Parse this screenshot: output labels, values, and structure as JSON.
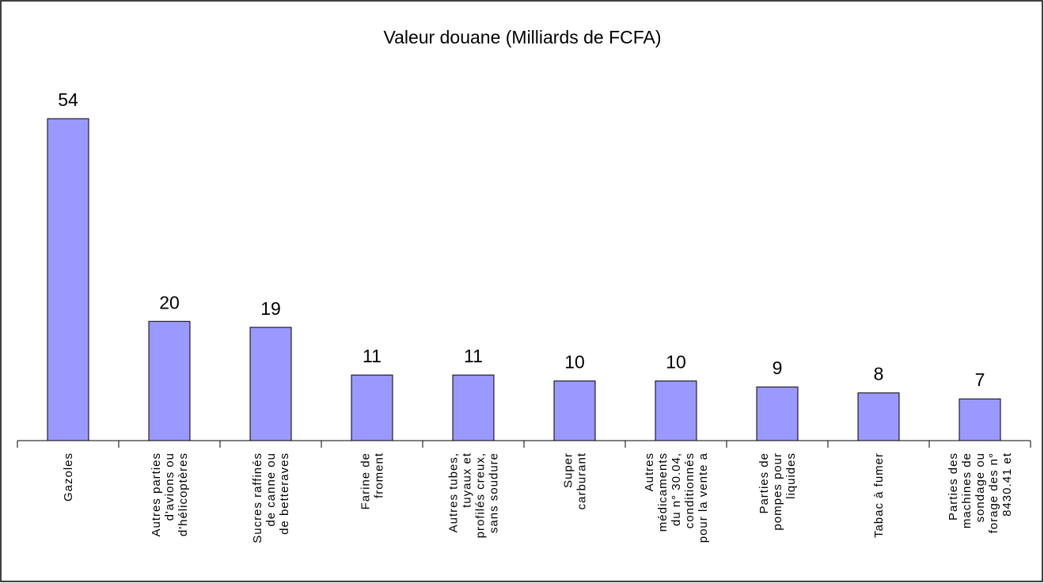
{
  "chart_data": {
    "type": "bar",
    "title": "Valeur douane (Milliards de FCFA)",
    "categories": [
      [
        "Gazoles"
      ],
      [
        "Autres parties",
        "d'avions ou",
        "d'hélicoptères"
      ],
      [
        "Sucres raffinés",
        "de canne ou",
        "de betteraves"
      ],
      [
        "Farine de",
        "froment"
      ],
      [
        "Autres tubes,",
        "tuyaux et",
        "profilés creux,",
        "sans soudure"
      ],
      [
        "Super",
        "carburant"
      ],
      [
        "Autres",
        "médicaments",
        "du n° 30.04,",
        "conditionnés",
        "pour la vente a"
      ],
      [
        "Parties de",
        "pompes pour",
        "liquides"
      ],
      [
        "Tabac à fumer"
      ],
      [
        "Parties des",
        "machines de",
        "sondage ou",
        "forage des n°",
        "8430.41 et"
      ]
    ],
    "values": [
      54,
      20,
      19,
      11,
      11,
      10,
      10,
      9,
      8,
      7
    ],
    "color": "#9999ff"
  }
}
